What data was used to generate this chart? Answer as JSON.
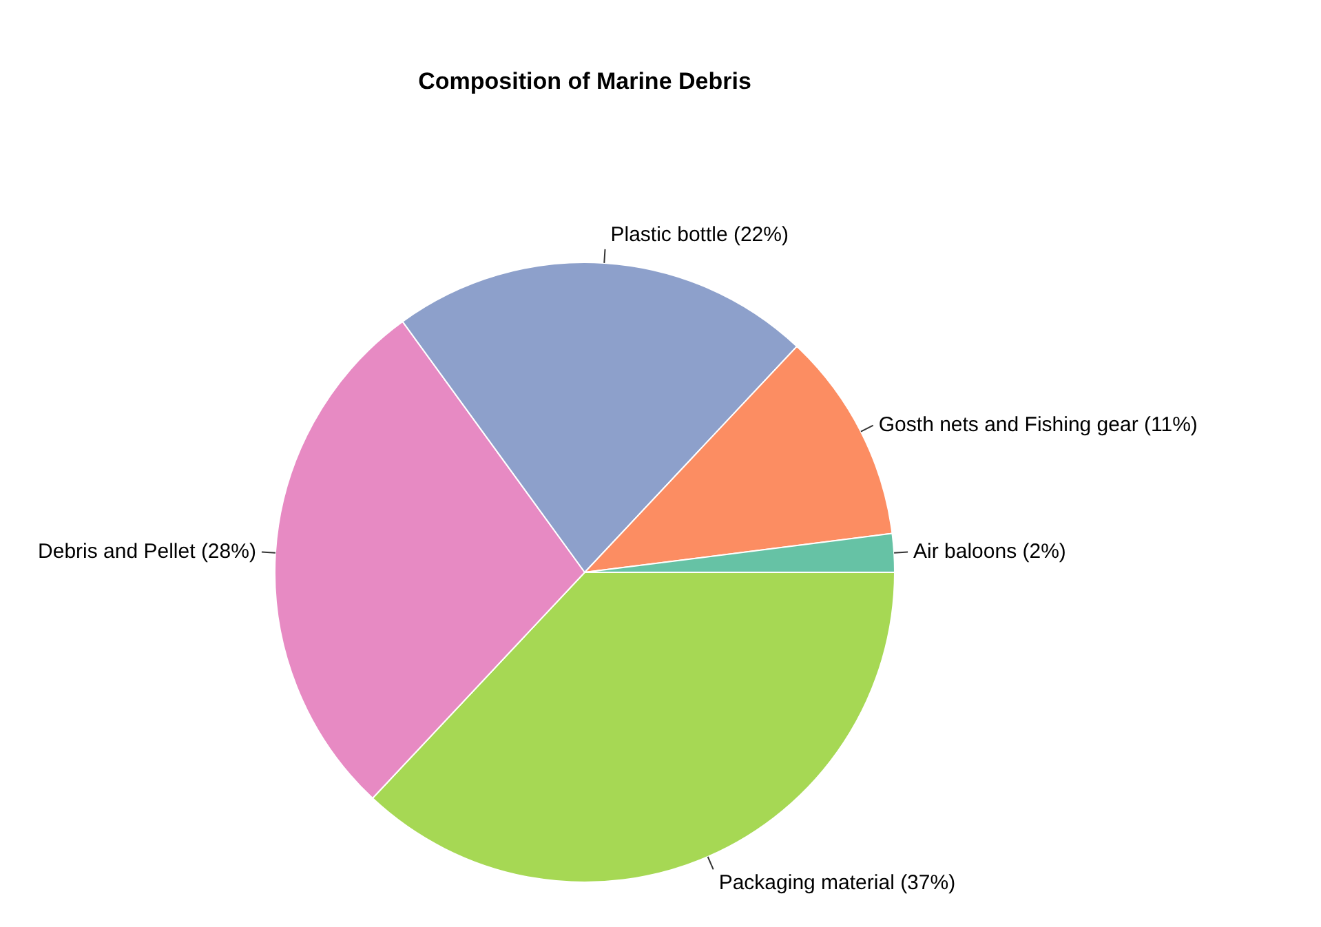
{
  "chart_data": {
    "type": "pie",
    "title": "Composition of Marine Debris",
    "categories": [
      "Packaging material (37%)",
      "Debris and Pellet (28%)",
      "Plastic bottle (22%)",
      "Gosth nets and Fishing gear (11%)",
      "Air baloons (2%)"
    ],
    "values": [
      37,
      28,
      22,
      11,
      2
    ],
    "colors": [
      "#a6d854",
      "#e78ac3",
      "#8da0cb",
      "#fc8d62",
      "#66c2a5"
    ],
    "legend": false
  }
}
